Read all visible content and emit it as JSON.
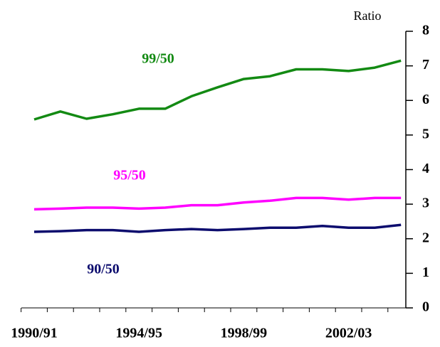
{
  "chart_data": {
    "type": "line",
    "y_label": "Ratio",
    "categories": [
      "1990/91",
      null,
      null,
      null,
      "1994/95",
      null,
      null,
      null,
      "1998/99",
      null,
      null,
      null,
      "2002/03",
      null,
      null
    ],
    "series": [
      {
        "name": "99/50",
        "color": "#138a13",
        "values": [
          5.45,
          5.68,
          5.47,
          5.6,
          5.76,
          5.76,
          6.12,
          6.38,
          6.62,
          6.7,
          6.9,
          6.9,
          6.85,
          6.95,
          7.15
        ]
      },
      {
        "name": "95/50",
        "color": "#ff00ff",
        "values": [
          2.85,
          2.87,
          2.9,
          2.9,
          2.87,
          2.9,
          2.97,
          2.97,
          3.05,
          3.1,
          3.18,
          3.18,
          3.13,
          3.18,
          3.18
        ]
      },
      {
        "name": "90/50",
        "color": "#0c0c6e",
        "values": [
          2.2,
          2.22,
          2.25,
          2.25,
          2.2,
          2.25,
          2.28,
          2.25,
          2.28,
          2.32,
          2.32,
          2.37,
          2.32,
          2.32,
          2.4
        ]
      }
    ],
    "ylim": [
      0,
      8
    ],
    "yticks": [
      0,
      1,
      2,
      3,
      4,
      5,
      6,
      7,
      8
    ],
    "y_axis_side": "right",
    "grid": false
  }
}
